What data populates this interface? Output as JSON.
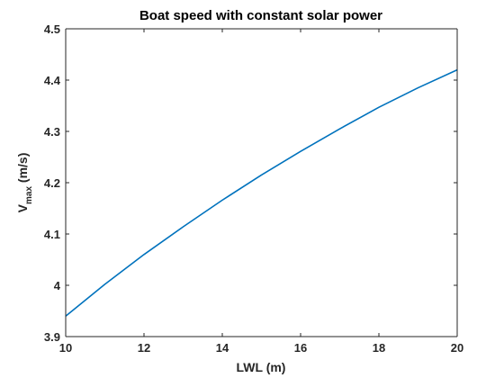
{
  "chart_data": {
    "type": "line",
    "title": "Boat speed with constant solar power",
    "xlabel": "LWL (m)",
    "ylabel": {
      "main": "V",
      "subscript": "max",
      "suffix": " (m/s)"
    },
    "xlim": [
      10,
      20
    ],
    "ylim": [
      3.9,
      4.5
    ],
    "xticks": [
      10,
      12,
      14,
      16,
      18,
      20
    ],
    "yticks": [
      3.9,
      4,
      4.1,
      4.2,
      4.3,
      4.4,
      4.5
    ],
    "xtick_labels": [
      "10",
      "12",
      "14",
      "16",
      "18",
      "20"
    ],
    "ytick_labels": [
      "3.9",
      "4",
      "4.1",
      "4.2",
      "4.3",
      "4.4",
      "4.5"
    ],
    "grid": false,
    "series": [
      {
        "color": "#0072bd",
        "x": [
          10,
          11,
          12,
          13,
          14,
          15,
          16,
          17,
          18,
          19,
          20
        ],
        "y": [
          3.94,
          4.002,
          4.06,
          4.114,
          4.166,
          4.215,
          4.261,
          4.305,
          4.347,
          4.385,
          4.42
        ]
      }
    ]
  }
}
